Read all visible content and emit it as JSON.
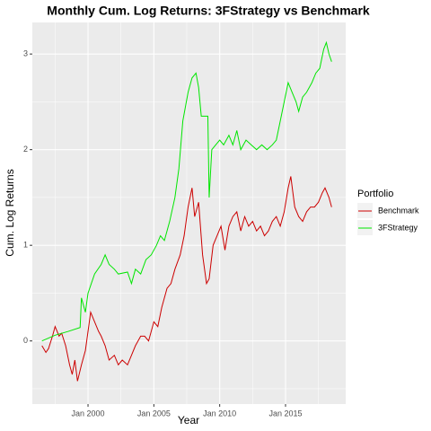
{
  "chart_data": {
    "type": "line",
    "title": "Monthly Cum. Log Returns: 3FStrategy vs Benchmark",
    "x_label": "Year",
    "y_label": "Cum. Log Returns",
    "legend_title": "Portfolio",
    "xlim": [
      1995.77,
      2019.57
    ],
    "ylim": [
      -0.66,
      3.33
    ],
    "xticks": [
      {
        "value": 2000,
        "label": "Jan 2000"
      },
      {
        "value": 2005,
        "label": "Jan 2005"
      },
      {
        "value": 2010,
        "label": "Jan 2010"
      },
      {
        "value": 2015,
        "label": "Jan 2015"
      }
    ],
    "yticks": [
      0,
      1,
      2,
      3
    ],
    "grid": true,
    "legend": "right",
    "series": [
      {
        "name": "Benchmark",
        "color": "#cc0000",
        "x": [
          1996.5,
          1996.8,
          1997.0,
          1997.3,
          1997.5,
          1997.8,
          1998.0,
          1998.3,
          1998.6,
          1998.8,
          1999.0,
          1999.2,
          1999.5,
          1999.8,
          2000.0,
          2000.2,
          2000.5,
          2000.8,
          2001.0,
          2001.3,
          2001.6,
          2002.0,
          2002.3,
          2002.6,
          2003.0,
          2003.3,
          2003.6,
          2004.0,
          2004.3,
          2004.6,
          2005.0,
          2005.3,
          2005.6,
          2006.0,
          2006.3,
          2006.6,
          2007.0,
          2007.3,
          2007.6,
          2007.9,
          2008.1,
          2008.4,
          2008.7,
          2009.0,
          2009.2,
          2009.5,
          2009.8,
          2010.1,
          2010.4,
          2010.7,
          2011.0,
          2011.3,
          2011.6,
          2011.9,
          2012.2,
          2012.5,
          2012.8,
          2013.1,
          2013.4,
          2013.7,
          2014.0,
          2014.3,
          2014.6,
          2014.9,
          2015.2,
          2015.4,
          2015.7,
          2016.0,
          2016.3,
          2016.6,
          2016.9,
          2017.2,
          2017.5,
          2017.8,
          2018.0,
          2018.3,
          2018.5
        ],
        "values": [
          -0.05,
          -0.12,
          -0.08,
          0.05,
          0.15,
          0.05,
          0.08,
          -0.05,
          -0.25,
          -0.35,
          -0.2,
          -0.42,
          -0.25,
          -0.1,
          0.1,
          0.3,
          0.2,
          0.1,
          0.05,
          -0.05,
          -0.2,
          -0.15,
          -0.25,
          -0.2,
          -0.25,
          -0.15,
          -0.05,
          0.05,
          0.05,
          0.0,
          0.2,
          0.15,
          0.35,
          0.55,
          0.6,
          0.75,
          0.9,
          1.1,
          1.4,
          1.6,
          1.3,
          1.45,
          0.9,
          0.6,
          0.65,
          1.0,
          1.1,
          1.2,
          0.95,
          1.2,
          1.3,
          1.35,
          1.15,
          1.3,
          1.2,
          1.25,
          1.15,
          1.2,
          1.1,
          1.15,
          1.25,
          1.3,
          1.2,
          1.35,
          1.6,
          1.72,
          1.4,
          1.3,
          1.25,
          1.35,
          1.4,
          1.4,
          1.45,
          1.55,
          1.6,
          1.5,
          1.4
        ]
      },
      {
        "name": "3FStrategy",
        "color": "#00e600",
        "x": [
          1996.5,
          1997.5,
          1998.5,
          1999.4,
          1999.5,
          1999.8,
          2000.0,
          2000.5,
          2001.0,
          2001.3,
          2001.6,
          2002.0,
          2002.3,
          2003.0,
          2003.3,
          2003.6,
          2004.0,
          2004.4,
          2004.8,
          2005.2,
          2005.5,
          2005.8,
          2006.2,
          2006.6,
          2006.9,
          2007.2,
          2007.6,
          2007.9,
          2008.2,
          2008.4,
          2008.6,
          2009.1,
          2009.2,
          2009.4,
          2009.7,
          2010.0,
          2010.3,
          2010.7,
          2011.0,
          2011.3,
          2011.6,
          2012.0,
          2012.4,
          2012.8,
          2013.2,
          2013.6,
          2014.0,
          2014.3,
          2014.6,
          2014.9,
          2015.2,
          2015.5,
          2015.8,
          2016.0,
          2016.3,
          2016.6,
          2017.0,
          2017.3,
          2017.6,
          2017.9,
          2018.1,
          2018.3,
          2018.5
        ],
        "values": [
          0.0,
          0.06,
          0.1,
          0.14,
          0.45,
          0.3,
          0.5,
          0.7,
          0.8,
          0.9,
          0.8,
          0.75,
          0.7,
          0.72,
          0.6,
          0.75,
          0.7,
          0.85,
          0.9,
          1.0,
          1.1,
          1.05,
          1.25,
          1.5,
          1.8,
          2.3,
          2.6,
          2.75,
          2.8,
          2.65,
          2.35,
          2.35,
          1.5,
          2.0,
          2.05,
          2.1,
          2.05,
          2.15,
          2.05,
          2.2,
          2.0,
          2.1,
          2.05,
          2.0,
          2.05,
          2.0,
          2.05,
          2.1,
          2.3,
          2.5,
          2.7,
          2.6,
          2.5,
          2.4,
          2.55,
          2.6,
          2.7,
          2.8,
          2.85,
          3.05,
          3.12,
          3.0,
          2.92
        ]
      }
    ]
  }
}
